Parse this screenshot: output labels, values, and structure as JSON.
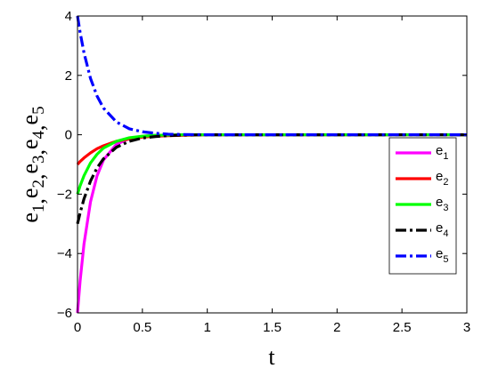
{
  "chart_data": {
    "type": "line",
    "title": "",
    "xlabel": "t",
    "ylabel": "e",
    "ylabel_subscripts": [
      "1",
      "2",
      "3",
      "4",
      "5"
    ],
    "xlim": [
      0,
      3
    ],
    "ylim": [
      -6,
      4
    ],
    "xticks": [
      0,
      0.5,
      1,
      1.5,
      2,
      2.5,
      3
    ],
    "xtick_labels": [
      "0",
      "0.5",
      "1",
      "1.5",
      "2",
      "2.5",
      "3"
    ],
    "yticks": [
      -6,
      -4,
      -2,
      0,
      2,
      4
    ],
    "ytick_labels": [
      "−6",
      "−4",
      "−2",
      "0",
      "2",
      "4"
    ],
    "grid": false,
    "legend_position": "right",
    "x": [
      0,
      0.02,
      0.05,
      0.1,
      0.15,
      0.2,
      0.3,
      0.4,
      0.5,
      0.6,
      0.7,
      0.8,
      1,
      1.5,
      2,
      2.5,
      3
    ],
    "series": [
      {
        "name": "e",
        "sub": "1",
        "color": "#ff00ff",
        "dash": "solid",
        "values": [
          -6,
          -4.93,
          -3.68,
          -2.26,
          -1.39,
          -0.85,
          -0.32,
          -0.12,
          -0.05,
          -0.02,
          -0.01,
          0,
          0,
          0,
          0,
          0,
          0
        ]
      },
      {
        "name": "e",
        "sub": "2",
        "color": "#ff0000",
        "dash": "solid",
        "values": [
          -1,
          -0.9,
          -0.78,
          -0.61,
          -0.47,
          -0.37,
          -0.22,
          -0.14,
          -0.08,
          -0.05,
          -0.03,
          -0.02,
          0,
          0,
          0,
          0,
          0
        ]
      },
      {
        "name": "e",
        "sub": "3",
        "color": "#00ff00",
        "dash": "solid",
        "values": [
          -2,
          -1.72,
          -1.38,
          -0.95,
          -0.66,
          -0.45,
          -0.22,
          -0.1,
          -0.05,
          -0.02,
          -0.01,
          0,
          0,
          0,
          0,
          0,
          0
        ]
      },
      {
        "name": "e",
        "sub": "4",
        "color": "#000000",
        "dash": "dashdot",
        "values": [
          -3,
          -2.63,
          -2.16,
          -1.56,
          -1.12,
          -0.81,
          -0.42,
          -0.22,
          -0.11,
          -0.06,
          -0.03,
          -0.01,
          0,
          0,
          0,
          0,
          0
        ]
      },
      {
        "name": "e",
        "sub": "5",
        "color": "#0000ff",
        "dash": "dashdot",
        "values": [
          4,
          3.45,
          2.76,
          1.9,
          1.31,
          0.9,
          0.43,
          0.2,
          0.1,
          0.05,
          0.02,
          0.01,
          0,
          0,
          0,
          0,
          0
        ]
      }
    ]
  }
}
